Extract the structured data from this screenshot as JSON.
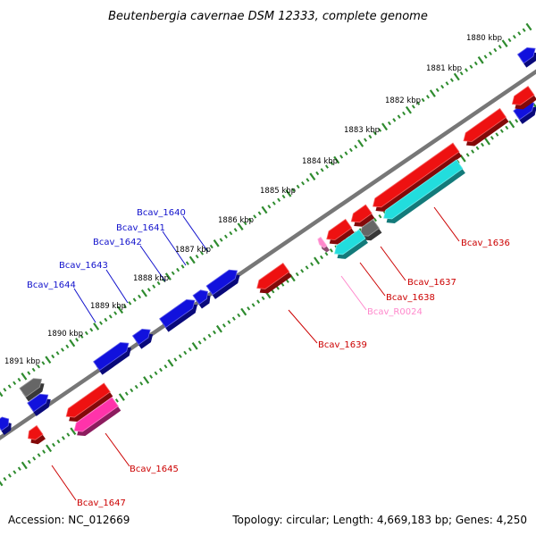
{
  "title": "Beutenbergia cavernae DSM 12333, complete genome",
  "footer": {
    "accession": "Accession: NC_012669",
    "topology": "Topology: circular; Length: 4,669,183 bp; Genes: 4,250"
  },
  "colors": {
    "backbone": "#777777",
    "scale_ticks": "#2e8b2e",
    "forward_gene": "#1111dd",
    "reverse_gene": "#ee1111",
    "cds_reverse": "#22dddd",
    "rrna_like": "#ff33aa",
    "pseudo": "#666666",
    "forward_label": "#1111cc",
    "reverse_label": "#cc0000",
    "rna_label": "#ff88cc"
  },
  "scale_labels": [
    "1880 kbp",
    "1881 kbp",
    "1882 kbp",
    "1883 kbp",
    "1884 kbp",
    "1885 kbp",
    "1886 kbp",
    "1887 kbp",
    "1888 kbp",
    "1889 kbp",
    "1890 kbp",
    "1891 kbp"
  ],
  "gene_labels": {
    "forward": [
      "Bcav_1640",
      "Bcav_1641",
      "Bcav_1642",
      "Bcav_1643",
      "Bcav_1644"
    ],
    "reverse": [
      "Bcav_1636",
      "Bcav_1637",
      "Bcav_1638",
      "Bcav_1639",
      "Bcav_1645",
      "Bcav_1647"
    ],
    "rna": [
      "Bcav_R0024"
    ]
  }
}
